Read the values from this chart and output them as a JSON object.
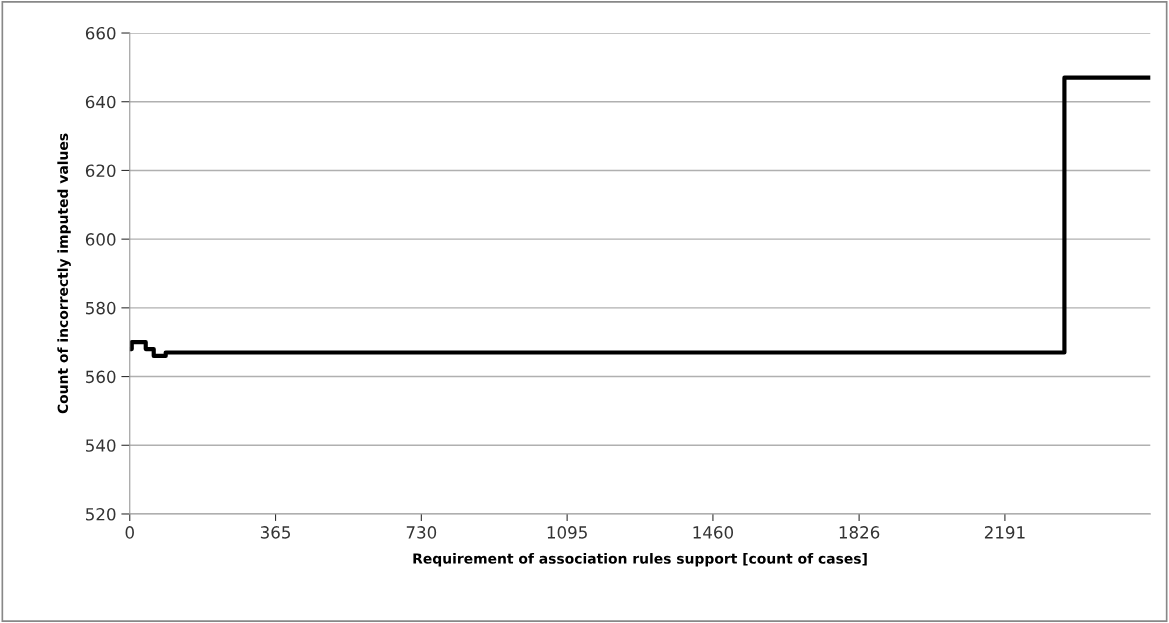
{
  "chart_data": {
    "type": "step",
    "xlabel": "Requirement of association rules support [count of cases]",
    "ylabel": "Count of incorrectly imputed values",
    "x": [
      0,
      5,
      40,
      60,
      90,
      2340,
      2555
    ],
    "series": [
      {
        "color": "#000000",
        "values": [
          568,
          570,
          568,
          566,
          567,
          647,
          647
        ]
      }
    ],
    "xlim": [
      0,
      2555
    ],
    "xticks": [
      0,
      365,
      730,
      1095,
      1460,
      1826,
      2191
    ],
    "ylim": [
      520,
      660
    ],
    "yticks": [
      520,
      540,
      560,
      580,
      600,
      620,
      640,
      660
    ],
    "grid": "y",
    "legend": false,
    "marker": "none",
    "line_style": "solid"
  }
}
